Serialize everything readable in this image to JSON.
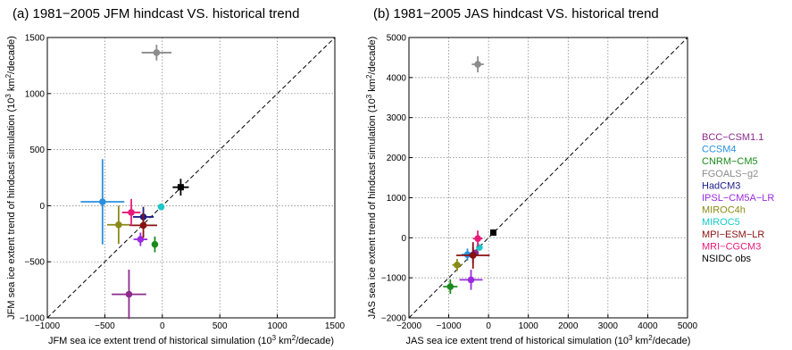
{
  "chart_data": [
    {
      "type": "scatter",
      "title": "(a) 1981−2005 JFM hindcast VS. historical trend",
      "xlabel": "JFM sea ice extent trend of historical simulation (10",
      "ylabel": "JFM sea ice extent trend of hindcast simulation (10",
      "unit_tail": " km",
      "unit_end": "/decade)",
      "unit_exp3": "3",
      "unit_exp2": "2",
      "xlim": [
        -1000,
        1500
      ],
      "ylim": [
        -1000,
        1500
      ],
      "xticks": [
        -1000,
        -500,
        0,
        500,
        1000,
        1500
      ],
      "yticks": [
        -1000,
        -500,
        0,
        500,
        1000,
        1500
      ],
      "xtick_labels": [
        "−1000",
        "−500",
        "0",
        "500",
        "1000",
        "1500"
      ],
      "ytick_labels": [
        "−1000",
        "−500",
        "0",
        "500",
        "1000",
        "1500"
      ],
      "grid": true,
      "reference_line": "1:1 dashed",
      "points": [
        {
          "model": "BCC-CSM1.1",
          "x": -290,
          "y": -790,
          "xerr": 150,
          "yerr": 220
        },
        {
          "model": "CCSM4",
          "x": -520,
          "y": 35,
          "xerr": 190,
          "yerr": 380
        },
        {
          "model": "CNRM-CM5",
          "x": -65,
          "y": -345,
          "xerr": 25,
          "yerr": 70
        },
        {
          "model": "FGOALS-g2",
          "x": -50,
          "y": 1365,
          "xerr": 130,
          "yerr": 70
        },
        {
          "model": "HadCM3",
          "x": -165,
          "y": -100,
          "xerr": 90,
          "yerr": 90
        },
        {
          "model": "IPSL-CM5A-LR",
          "x": -190,
          "y": -300,
          "xerr": 60,
          "yerr": 60
        },
        {
          "model": "MIROC4h",
          "x": -380,
          "y": -170,
          "xerr": 100,
          "yerr": 170
        },
        {
          "model": "MIROC5",
          "x": -10,
          "y": -10,
          "xerr": 15,
          "yerr": 15
        },
        {
          "model": "MPI-ESM-LR",
          "x": -165,
          "y": -175,
          "xerr": 120,
          "yerr": 110
        },
        {
          "model": "MRI-CGCM3",
          "x": -270,
          "y": -60,
          "xerr": 80,
          "yerr": 120
        },
        {
          "model": "NSIDC obs",
          "x": 160,
          "y": 165,
          "xerr": 70,
          "yerr": 75
        }
      ]
    },
    {
      "type": "scatter",
      "title": "(b) 1981−2005 JAS hindcast VS. historical trend",
      "xlabel": "JAS sea ice extent trend of historical simulation (10",
      "ylabel": "JAS sea ice extent trend of hindcast simulation (10",
      "unit_tail": " km",
      "unit_end": "/decade)",
      "unit_exp3": "3",
      "unit_exp2": "2",
      "xlim": [
        -2000,
        5000
      ],
      "ylim": [
        -2000,
        5000
      ],
      "xticks": [
        -2000,
        -1000,
        0,
        1000,
        2000,
        3000,
        4000,
        5000
      ],
      "yticks": [
        -2000,
        -1000,
        0,
        1000,
        2000,
        3000,
        4000,
        5000
      ],
      "xtick_labels": [
        "−2000",
        "−1000",
        "0",
        "1000",
        "2000",
        "3000",
        "4000",
        "5000"
      ],
      "ytick_labels": [
        "−2000",
        "−1000",
        "0",
        "1000",
        "2000",
        "3000",
        "4000",
        "5000"
      ],
      "grid": true,
      "reference_line": "1:1 dashed",
      "points": [
        {
          "model": "BCC-CSM1.1",
          "x": -330,
          "y": -380,
          "xerr": 80,
          "yerr": 80
        },
        {
          "model": "CCSM4",
          "x": -530,
          "y": -420,
          "xerr": 150,
          "yerr": 150
        },
        {
          "model": "CNRM-CM5",
          "x": -960,
          "y": -1220,
          "xerr": 180,
          "yerr": 180
        },
        {
          "model": "FGOALS-g2",
          "x": -270,
          "y": 4330,
          "xerr": 150,
          "yerr": 200
        },
        {
          "model": "HadCM3",
          "x": -390,
          "y": -430,
          "xerr": 120,
          "yerr": 200
        },
        {
          "model": "IPSL-CM5A-LR",
          "x": -440,
          "y": -1050,
          "xerr": 290,
          "yerr": 250
        },
        {
          "model": "MIROC4h",
          "x": -790,
          "y": -680,
          "xerr": 120,
          "yerr": 150
        },
        {
          "model": "MIROC5",
          "x": -230,
          "y": -240,
          "xerr": 50,
          "yerr": 50
        },
        {
          "model": "MPI-ESM-LR",
          "x": -390,
          "y": -440,
          "xerr": 420,
          "yerr": 330
        },
        {
          "model": "MRI-CGCM3",
          "x": -270,
          "y": -20,
          "xerr": 120,
          "yerr": 200
        },
        {
          "model": "NSIDC obs",
          "x": 120,
          "y": 130,
          "xerr": 40,
          "yerr": 40
        }
      ]
    }
  ],
  "legend": {
    "placement": "right",
    "items": [
      {
        "label": "BCC−CSM1.1",
        "color": "#8e2a8e"
      },
      {
        "label": "CCSM4",
        "color": "#2a8fe0"
      },
      {
        "label": "CNRM−CM5",
        "color": "#1b8a1b"
      },
      {
        "label": "FGOALS−g2",
        "color": "#8c8c8c"
      },
      {
        "label": "HadCM3",
        "color": "#1c1c8a"
      },
      {
        "label": "IPSL−CM5A−LR",
        "color": "#9a2ae0"
      },
      {
        "label": "MIROC4h",
        "color": "#8a8a18"
      },
      {
        "label": "MIROC5",
        "color": "#19c8c8"
      },
      {
        "label": "MPI−ESM−LR",
        "color": "#8a1010"
      },
      {
        "label": "MRI−CGCM3",
        "color": "#e81a78"
      },
      {
        "label": "NSIDC obs",
        "color": "#000000"
      }
    ]
  }
}
